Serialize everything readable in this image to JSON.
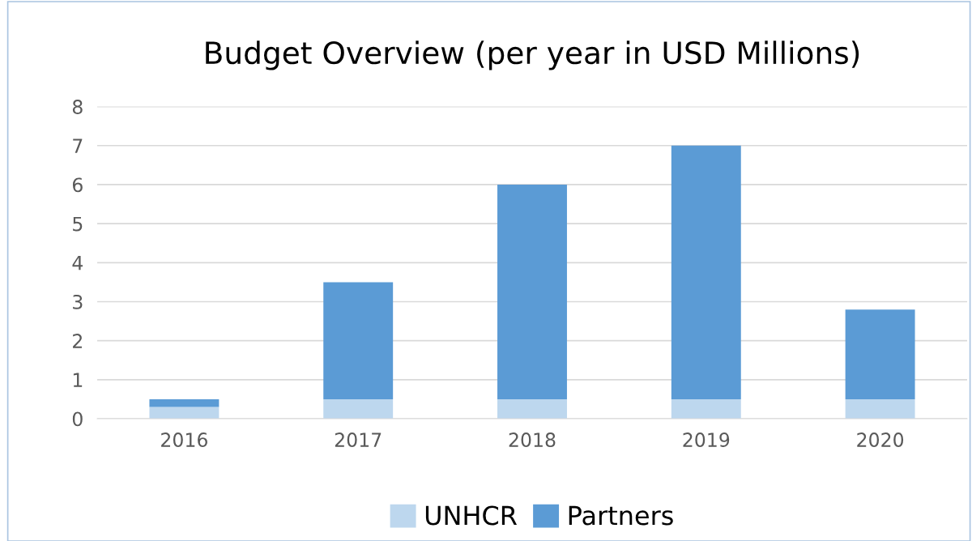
{
  "chart_data": {
    "type": "bar",
    "title": "Budget Overview (per year in USD Millions)",
    "stacked": true,
    "categories": [
      "2016",
      "2017",
      "2018",
      "2019",
      "2020"
    ],
    "series": [
      {
        "name": "UNHCR",
        "color": "#bdd7ee",
        "values": [
          0.3,
          0.5,
          0.5,
          0.5,
          0.5
        ]
      },
      {
        "name": "Partners",
        "color": "#5b9bd5",
        "values": [
          0.2,
          3.0,
          5.5,
          6.5,
          2.3
        ]
      }
    ],
    "ylim": [
      0,
      8
    ],
    "yticks": [
      0,
      1,
      2,
      3,
      4,
      5,
      6,
      7,
      8
    ],
    "grid": "y",
    "legend": "bottom"
  }
}
